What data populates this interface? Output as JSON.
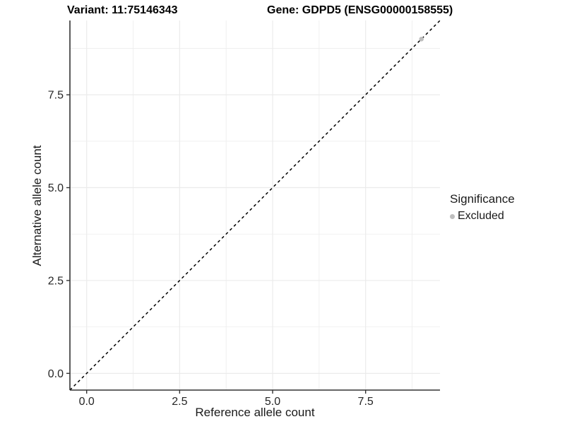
{
  "titles": {
    "variant": "Variant: 11:75146343",
    "gene": "Gene: GDPD5 (ENSG00000158555)"
  },
  "chart_data": {
    "type": "scatter",
    "xlabel": "Reference allele count",
    "ylabel": "Alternative allele count",
    "xlim": [
      -0.45,
      9.5
    ],
    "ylim": [
      -0.45,
      9.5
    ],
    "x_ticks": {
      "values": [
        0,
        2.5,
        5,
        7.5
      ],
      "labels": [
        "0.0",
        "2.5",
        "5.0",
        "7.5"
      ]
    },
    "y_ticks": {
      "values": [
        0,
        2.5,
        5,
        7.5
      ],
      "labels": [
        "0.0",
        "2.5",
        "5.0",
        "7.5"
      ]
    },
    "x_minor_ticks": [
      1.25,
      3.75,
      6.25,
      8.75
    ],
    "y_minor_ticks": [
      1.25,
      3.75,
      6.25,
      8.75
    ],
    "grid": "major+minor",
    "series": [
      {
        "name": "Excluded",
        "marker": "circle",
        "color": "#bebebe",
        "points": [
          {
            "x": 9,
            "y": 9
          }
        ]
      }
    ],
    "reference_line": {
      "type": "abline",
      "intercept": 0,
      "slope": 1,
      "style": "dashed",
      "color": "#000000"
    },
    "legend": {
      "title": "Significance",
      "position": "right",
      "entries": [
        {
          "label": "Excluded",
          "color": "#bebebe",
          "marker": "circle"
        }
      ]
    }
  },
  "style_colors": {
    "grid_major": "#ebebeb",
    "grid_minor": "#ededed",
    "axis_line": "#333333",
    "tick_mark": "#333333",
    "tick_label": "#262626",
    "point": "#bebebe"
  }
}
